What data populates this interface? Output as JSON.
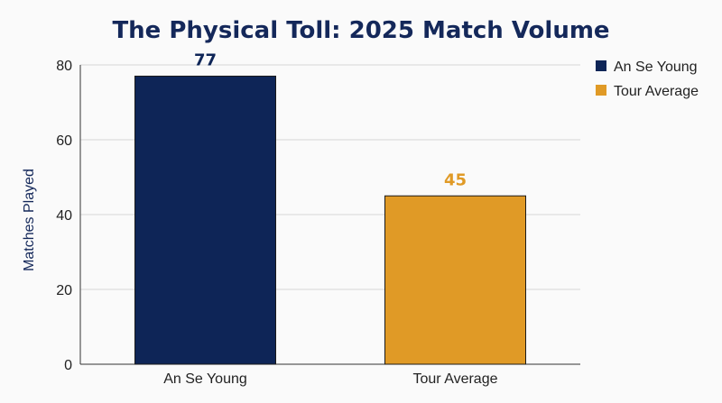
{
  "chart_data": {
    "type": "bar",
    "title": "The Physical Toll: 2025 Match Volume",
    "xlabel": "",
    "ylabel": "Matches Played",
    "ylim": [
      0,
      80
    ],
    "yticks": [
      0,
      20,
      40,
      60,
      80
    ],
    "grid": true,
    "legend_position": "top-right",
    "categories": [
      "An Se Young",
      "Tour Average"
    ],
    "values": [
      77,
      45
    ],
    "colors": [
      "#0e2557",
      "#e09a26"
    ],
    "legend": [
      "An Se Young",
      "Tour Average"
    ]
  }
}
